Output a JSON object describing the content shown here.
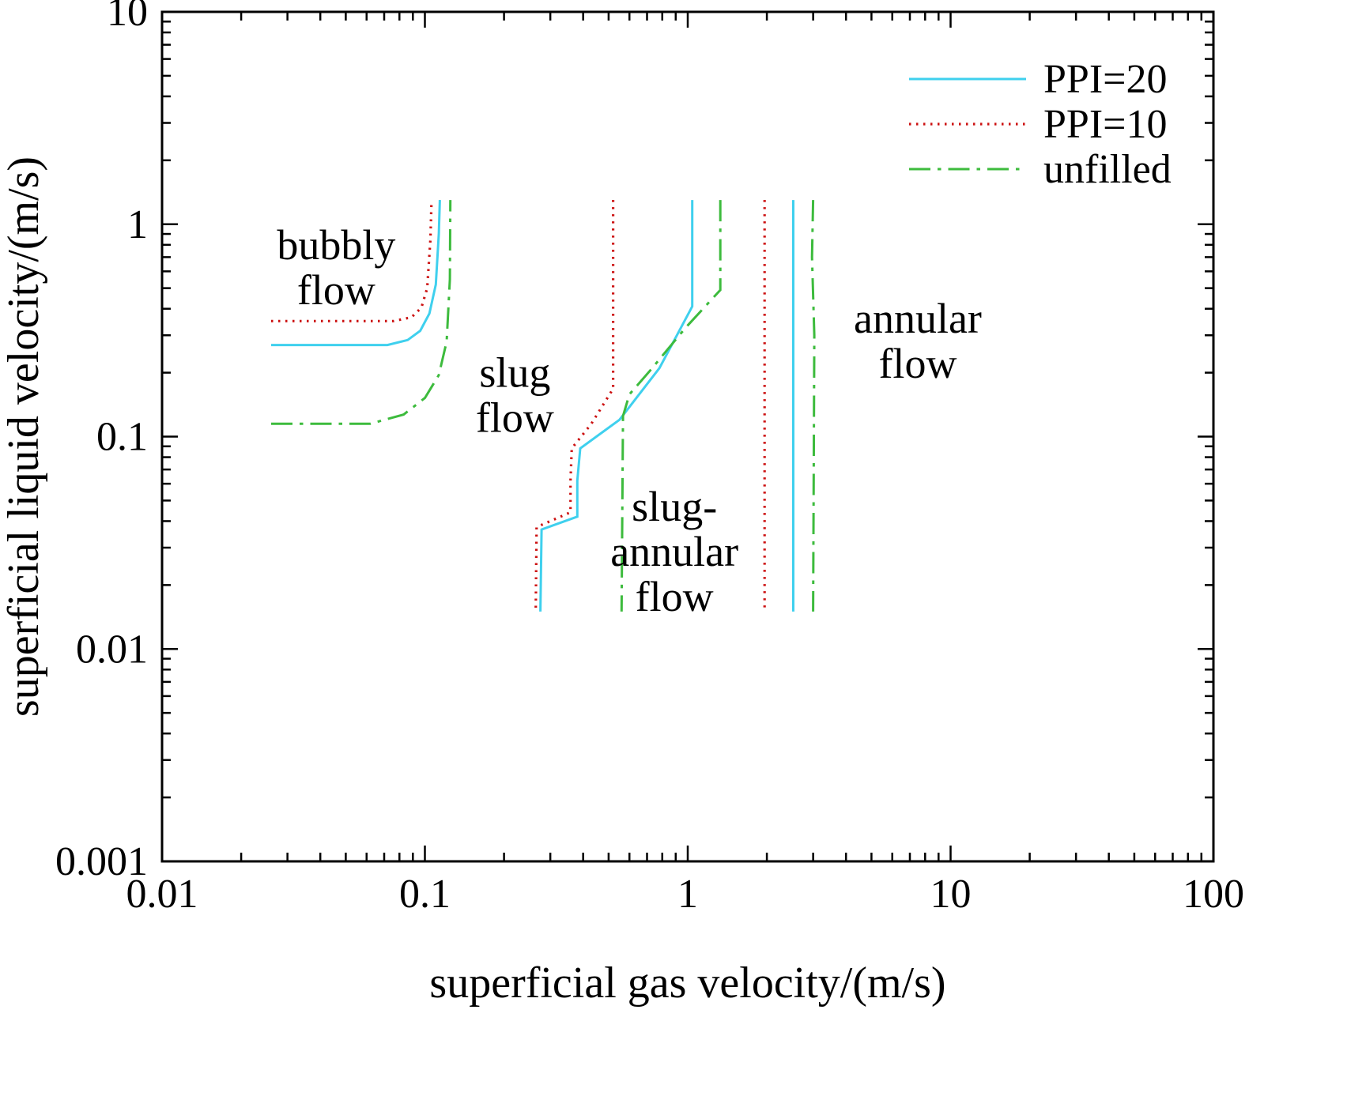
{
  "chart_data": {
    "type": "line",
    "title": "",
    "xlabel": "superficial gas velocity/(m/s)",
    "ylabel": "superficial liquid velocity/(m/s)",
    "xscale": "log",
    "yscale": "log",
    "xlim": [
      0.01,
      100
    ],
    "ylim": [
      0.001,
      10
    ],
    "grid": false,
    "x_ticks": {
      "values": [
        0.01,
        0.1,
        1,
        10,
        100
      ],
      "labels": [
        "0.01",
        "0.1",
        "1",
        "10",
        "100"
      ]
    },
    "y_ticks": {
      "values": [
        0.001,
        0.01,
        0.1,
        1,
        10
      ],
      "labels": [
        "0.001",
        "0.01",
        "0.1",
        "1",
        "10"
      ]
    },
    "legend": {
      "position": "top-right",
      "entries": [
        {
          "label": "PPI=20",
          "color": "#3fd0ee",
          "style": "solid"
        },
        {
          "label": "PPI=10",
          "color": "#cc1111",
          "style": "dotted"
        },
        {
          "label": "unfilled",
          "color": "#3dbb3d",
          "style": "dashdot"
        }
      ]
    },
    "series": [
      {
        "name": "PPI=20",
        "color": "#3fd0ee",
        "style": "solid",
        "segments": [
          [
            [
              0.026,
              0.27
            ],
            [
              0.072,
              0.27
            ],
            [
              0.086,
              0.285
            ],
            [
              0.096,
              0.315
            ],
            [
              0.104,
              0.38
            ],
            [
              0.11,
              0.52
            ],
            [
              0.113,
              0.9
            ],
            [
              0.114,
              1.3
            ]
          ],
          [
            [
              1.04,
              1.3
            ],
            [
              1.04,
              0.41
            ],
            [
              0.78,
              0.21
            ],
            [
              0.55,
              0.12
            ],
            [
              0.39,
              0.088
            ],
            [
              0.38,
              0.062
            ],
            [
              0.38,
              0.042
            ],
            [
              0.278,
              0.0365
            ],
            [
              0.275,
              0.015
            ]
          ],
          [
            [
              2.52,
              1.3
            ],
            [
              2.52,
              0.015
            ]
          ]
        ]
      },
      {
        "name": "PPI=10",
        "color": "#cc1111",
        "style": "dotted",
        "segments": [
          [
            [
              0.026,
              0.35
            ],
            [
              0.076,
              0.35
            ],
            [
              0.089,
              0.365
            ],
            [
              0.097,
              0.405
            ],
            [
              0.102,
              0.5
            ],
            [
              0.105,
              0.85
            ],
            [
              0.106,
              1.3
            ]
          ],
          [
            [
              0.52,
              1.3
            ],
            [
              0.52,
              0.168
            ],
            [
              0.43,
              0.115
            ],
            [
              0.362,
              0.088
            ],
            [
              0.358,
              0.062
            ],
            [
              0.358,
              0.044
            ],
            [
              0.266,
              0.0375
            ],
            [
              0.264,
              0.015
            ]
          ],
          [
            [
              1.96,
              1.3
            ],
            [
              1.96,
              0.015
            ]
          ]
        ]
      },
      {
        "name": "unfilled",
        "color": "#3dbb3d",
        "style": "dashdot",
        "segments": [
          [
            [
              0.026,
              0.115
            ],
            [
              0.062,
              0.115
            ],
            [
              0.083,
              0.127
            ],
            [
              0.1,
              0.152
            ],
            [
              0.113,
              0.195
            ],
            [
              0.121,
              0.28
            ],
            [
              0.1245,
              0.55
            ],
            [
              0.125,
              1.3
            ]
          ],
          [
            [
              1.33,
              1.3
            ],
            [
              1.33,
              0.49
            ],
            [
              0.98,
              0.325
            ],
            [
              0.72,
              0.205
            ],
            [
              0.6,
              0.158
            ],
            [
              0.567,
              0.125
            ],
            [
              0.56,
              0.015
            ]
          ],
          [
            [
              3.0,
              1.3
            ],
            [
              2.97,
              0.7
            ],
            [
              3.03,
              0.3
            ],
            [
              3.0,
              0.015
            ]
          ]
        ]
      }
    ],
    "region_labels": [
      {
        "lines": [
          "bubbly",
          "flow"
        ],
        "x": 0.046,
        "y": 0.63
      },
      {
        "lines": [
          "slug",
          "flow"
        ],
        "x": 0.22,
        "y": 0.158
      },
      {
        "lines": [
          "slug-",
          "annular",
          "flow"
        ],
        "x": 0.89,
        "y": 0.029
      },
      {
        "lines": [
          "annular",
          "flow"
        ],
        "x": 7.5,
        "y": 0.285
      }
    ]
  },
  "colors": {
    "axis": "#000000",
    "background": "#ffffff",
    "ppi20": "#3fd0ee",
    "ppi10": "#cc1111",
    "unfilled": "#3dbb3d"
  }
}
